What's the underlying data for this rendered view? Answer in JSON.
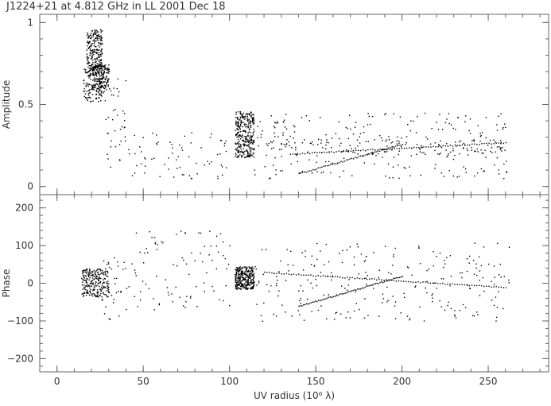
{
  "chart_data": {
    "type": "scatter",
    "title": "J1224+21 at 4.812 GHz in LL  2001 Dec 18",
    "xlabel": "UV radius  (10⁶ λ)",
    "xlim": [
      -10,
      285
    ],
    "xticks": [
      0,
      50,
      100,
      150,
      200,
      250
    ],
    "xtick_labels": [
      "0",
      "50",
      "100",
      "150",
      "200",
      "250"
    ],
    "grid": false,
    "panels": [
      {
        "name": "amplitude",
        "ylabel": "Amplitude",
        "ylim": [
          -0.05,
          1.05
        ],
        "yticks": [
          0,
          0.5,
          1
        ],
        "ytick_labels": [
          "0",
          "0.5",
          "1"
        ],
        "color": "#000000",
        "clusters": [
          {
            "x": [
              15,
              28
            ],
            "y": [
              0.52,
              0.72
            ],
            "count": 160
          },
          {
            "x": [
              17,
              26
            ],
            "y": [
              0.72,
              0.96
            ],
            "count": 220
          },
          {
            "x": [
              20,
              30
            ],
            "y": [
              0.6,
              0.75
            ],
            "count": 120
          },
          {
            "x": [
              28,
              40
            ],
            "y": [
              0.12,
              0.68
            ],
            "count": 40
          },
          {
            "x": [
              40,
              100
            ],
            "y": [
              0.05,
              0.34
            ],
            "count": 70
          },
          {
            "x": [
              103,
              114
            ],
            "y": [
              0.18,
              0.46
            ],
            "count": 320
          },
          {
            "x": [
              114,
              262
            ],
            "y": [
              0.05,
              0.45
            ],
            "count": 240
          },
          {
            "x": [
              120,
              260
            ],
            "y": [
              0.19,
              0.29
            ],
            "count": 120
          }
        ],
        "tracks": [
          {
            "x": [
              18,
              30
            ],
            "y": [
              0.7,
              0.72
            ],
            "peak": [
              24,
              0.74
            ],
            "count": 40
          },
          {
            "x": [
              135,
              260
            ],
            "y": [
              0.2,
              0.27
            ],
            "count": 90
          },
          {
            "x": [
              140,
              200
            ],
            "y": [
              0.08,
              0.26
            ],
            "count": 60
          }
        ]
      },
      {
        "name": "phase",
        "ylabel": "Phase",
        "ylim": [
          -235,
          235
        ],
        "yticks": [
          -200,
          -100,
          0,
          100,
          200
        ],
        "ytick_labels": [
          "−200",
          "−100",
          "0",
          "100",
          "200"
        ],
        "color": "#000000",
        "clusters": [
          {
            "x": [
              14,
              30
            ],
            "y": [
              -35,
              40
            ],
            "count": 240
          },
          {
            "x": [
              25,
              40
            ],
            "y": [
              -100,
              70
            ],
            "count": 35
          },
          {
            "x": [
              40,
              100
            ],
            "y": [
              -70,
              140
            ],
            "count": 90
          },
          {
            "x": [
              103,
              114
            ],
            "y": [
              -15,
              45
            ],
            "count": 320
          },
          {
            "x": [
              114,
              262
            ],
            "y": [
              -100,
              110
            ],
            "count": 240
          }
        ],
        "tracks": [
          {
            "x": [
              120,
              260
            ],
            "y": [
              30,
              -10
            ],
            "count": 100
          },
          {
            "x": [
              140,
              200
            ],
            "y": [
              -60,
              20
            ],
            "count": 70
          }
        ]
      }
    ]
  }
}
